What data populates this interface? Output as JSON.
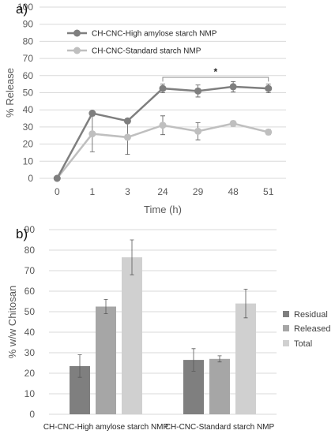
{
  "chart_data": [
    {
      "type": "line",
      "panel_label": "a)",
      "xlabel": "Time (h)",
      "ylabel": "% Release",
      "ylim": [
        0,
        100
      ],
      "yticks": [
        0,
        10,
        20,
        30,
        40,
        50,
        60,
        70,
        80,
        90,
        100
      ],
      "categories": [
        "0",
        "1",
        "3",
        "24",
        "29",
        "48",
        "51"
      ],
      "grid": true,
      "legend_position": "top-left",
      "series": [
        {
          "name": "CH-CNC-High amylose starch NMP",
          "color": "#7f7f7f",
          "values": [
            0,
            38,
            33.5,
            52.5,
            51,
            53.5,
            52.5
          ],
          "errors": [
            0,
            0,
            0,
            2.5,
            3.5,
            3,
            2.5
          ]
        },
        {
          "name": "CH-CNC-Standard starch NMP",
          "color": "#bfbfbf",
          "values": [
            0,
            26,
            24,
            31,
            27.5,
            32,
            27
          ],
          "errors": [
            0,
            10.5,
            10,
            5.5,
            5,
            1.5,
            1.5
          ]
        }
      ],
      "significance": {
        "from": "24",
        "to": "51",
        "label": "*"
      }
    },
    {
      "type": "bar",
      "panel_label": "b)",
      "xlabel": "",
      "ylabel": "% w/w Chitosan",
      "ylim": [
        0,
        90
      ],
      "yticks": [
        0,
        10,
        20,
        30,
        40,
        50,
        60,
        70,
        80,
        90
      ],
      "categories": [
        "CH-CNC-High amylose starch NMP",
        "CH-CNC-Standard starch NMP"
      ],
      "grid": true,
      "legend_position": "right",
      "series": [
        {
          "name": "Residual",
          "color": "#7f7f7f",
          "values": [
            23.5,
            26.5
          ],
          "errors": [
            5.5,
            5.5
          ]
        },
        {
          "name": "Released",
          "color": "#a6a6a6",
          "values": [
            52.5,
            27
          ],
          "errors": [
            3.5,
            1.5
          ]
        },
        {
          "name": "Total",
          "color": "#d0d0d0",
          "values": [
            76.5,
            54
          ],
          "errors": [
            8.5,
            7
          ]
        }
      ]
    }
  ]
}
